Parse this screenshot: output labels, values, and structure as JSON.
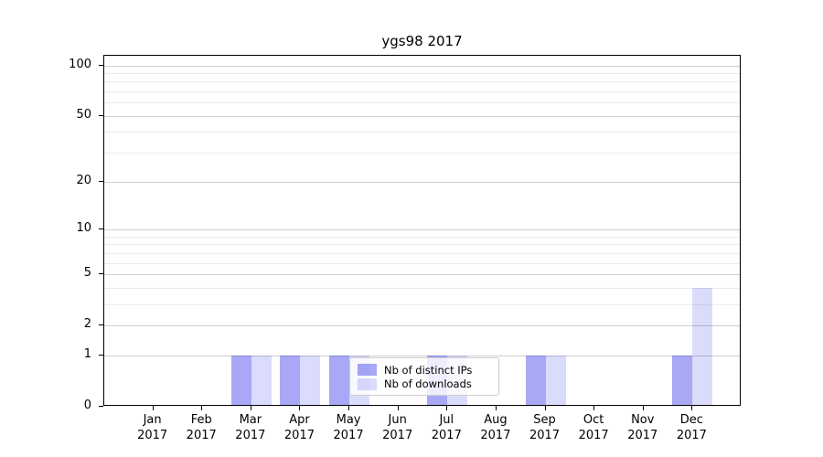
{
  "chart_data": {
    "type": "bar",
    "title": "ygs98 2017",
    "categories": [
      "Jan 2017",
      "Feb 2017",
      "Mar 2017",
      "Apr 2017",
      "May 2017",
      "Jun 2017",
      "Jul 2017",
      "Aug 2017",
      "Sep 2017",
      "Oct 2017",
      "Nov 2017",
      "Dec 2017"
    ],
    "series": [
      {
        "name": "Nb of distinct IPs",
        "color": "rgba(0,0,230,0.34)",
        "color_hex_on_white": "#a8a8f5",
        "values": [
          0,
          0,
          1,
          1,
          1,
          0,
          1,
          0,
          1,
          0,
          0,
          1
        ]
      },
      {
        "name": "Nb of downloads",
        "color": "rgba(0,0,230,0.14)",
        "color_hex_on_white": "#dcdcfa",
        "values": [
          0,
          0,
          1,
          1,
          1,
          0,
          1,
          0,
          1,
          0,
          0,
          4
        ]
      }
    ],
    "xlabel": "",
    "ylabel": "",
    "yscale": "log1p",
    "ytick_values": [
      0,
      1,
      2,
      5,
      10,
      20,
      50,
      100
    ],
    "ytick_labels": [
      "0",
      "1",
      "2",
      "5",
      "10",
      "20",
      "50",
      "100"
    ],
    "minor_gridline_values": [
      3,
      4,
      6,
      7,
      8,
      9,
      30,
      40,
      60,
      70,
      80,
      90
    ],
    "ylim": [
      0,
      114
    ],
    "grid": "horizontal",
    "legend_position": "lower center",
    "colors": {
      "major_grid": "#cfcfcf",
      "minor_grid": "#ececec",
      "spine": "#000000",
      "background": "#ffffff"
    }
  }
}
